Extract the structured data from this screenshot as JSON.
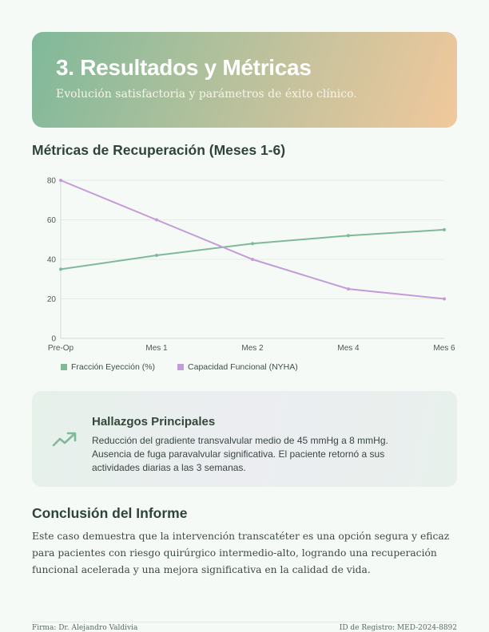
{
  "header": {
    "title": "3. Resultados y Métricas",
    "subtitle": "Evolución satisfactoria y parámetros de éxito clínico."
  },
  "chart_section": {
    "title": "Métricas de Recuperación (Meses 1-6)"
  },
  "chart_data": {
    "type": "line",
    "title": "Métricas de Recuperación (Meses 1-6)",
    "categories": [
      "Pre-Op",
      "Mes 1",
      "Mes 2",
      "Mes 4",
      "Mes 6"
    ],
    "series": [
      {
        "name": "Fracción Eyección (%)",
        "values": [
          35,
          42,
          48,
          52,
          55
        ],
        "color": "#7fb99a"
      },
      {
        "name": "Capacidad Funcional (NYHA)",
        "values": [
          80,
          60,
          40,
          25,
          20
        ],
        "color": "#c49bd9"
      }
    ],
    "xlabel": "",
    "ylabel": "",
    "ylim": [
      0,
      80
    ],
    "yticks": [
      0,
      20,
      40,
      60,
      80
    ],
    "grid": true,
    "legend_position": "bottom-left"
  },
  "legend": {
    "items": [
      {
        "label": "Fracción Eyección (%)",
        "color": "#7fb99a"
      },
      {
        "label": "Capacidad Funcional (NYHA)",
        "color": "#c49bd9"
      }
    ]
  },
  "findings": {
    "icon": "trending-up-icon",
    "title": "Hallazgos Principales",
    "body": "Reducción del gradiente transvalvular medio de 45 mmHg a 8 mmHg. Ausencia de fuga paravalvular significativa. El paciente retornó a sus actividades diarias a las 3 semanas."
  },
  "conclusion": {
    "title": "Conclusión del Informe",
    "body": "Este caso demuestra que la intervención transcatéter es una opción segura y eficaz para pacientes con riesgo quirúrgico intermedio-alto, logrando una recuperación funcional acelerada y una mejora significativa en la calidad de vida."
  },
  "footer": {
    "signature": "Firma: Dr. Alejandro Valdivia",
    "registry_id": "ID de Registro: MED-2024-8892"
  }
}
